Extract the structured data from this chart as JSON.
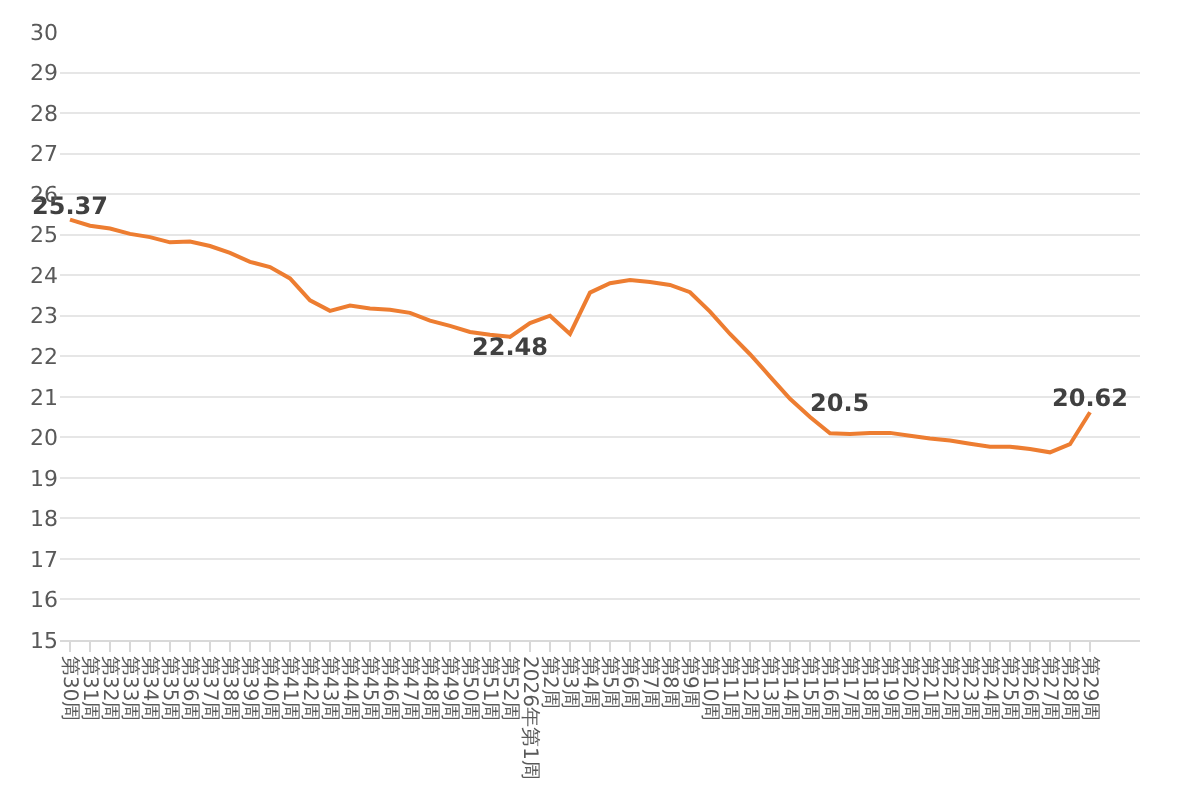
{
  "chart_data": {
    "type": "line",
    "categories": [
      "第30周",
      "第31周",
      "第32周",
      "第33周",
      "第34周",
      "第35周",
      "第36周",
      "第37周",
      "第38周",
      "第39周",
      "第40周",
      "第41周",
      "第42周",
      "第43周",
      "第44周",
      "第45周",
      "第46周",
      "第47周",
      "第48周",
      "第49周",
      "第50周",
      "第51周",
      "第52周",
      "2026年第1周",
      "第2周",
      "第3周",
      "第4周",
      "第5周",
      "第6周",
      "第7周",
      "第8周",
      "第9周",
      "第10周",
      "第11周",
      "第12周",
      "第13周",
      "第14周",
      "第15周",
      "第16周",
      "第17周",
      "第18周",
      "第19周",
      "第20周",
      "第21周",
      "第22周",
      "第23周",
      "第24周",
      "第25周",
      "第26周",
      "第27周",
      "第28周",
      "第29周"
    ],
    "series": [
      {
        "color": "#ed7d31",
        "values": [
          25.37,
          25.22,
          25.15,
          25.02,
          24.94,
          24.81,
          24.83,
          24.72,
          24.55,
          24.33,
          24.2,
          23.92,
          23.38,
          23.12,
          23.25,
          23.18,
          23.15,
          23.07,
          22.88,
          22.75,
          22.6,
          22.53,
          22.48,
          22.82,
          23.0,
          22.55,
          23.57,
          23.8,
          23.88,
          23.83,
          23.76,
          23.58,
          23.1,
          22.55,
          22.05,
          21.5,
          20.95,
          20.5,
          20.1,
          20.08,
          20.11,
          20.11,
          20.04,
          19.97,
          19.92,
          19.84,
          19.77,
          19.77,
          19.71,
          19.63,
          19.83,
          20.62
        ],
        "value_labels": [
          "25.37",
          null,
          null,
          null,
          null,
          null,
          null,
          null,
          null,
          null,
          null,
          null,
          null,
          null,
          null,
          null,
          null,
          null,
          null,
          null,
          null,
          null,
          "22.48",
          null,
          null,
          null,
          null,
          null,
          null,
          null,
          null,
          null,
          null,
          null,
          null,
          null,
          null,
          "20.5",
          null,
          null,
          null,
          null,
          null,
          null,
          null,
          null,
          null,
          null,
          null,
          null,
          null,
          "20.62"
        ]
      }
    ],
    "ylim": [
      15,
      30
    ],
    "yticks": [
      15,
      16,
      17,
      18,
      19,
      20,
      21,
      22,
      23,
      24,
      25,
      26,
      27,
      28,
      29,
      30
    ],
    "grid": "y",
    "marker": "none",
    "line_style": "solid"
  }
}
